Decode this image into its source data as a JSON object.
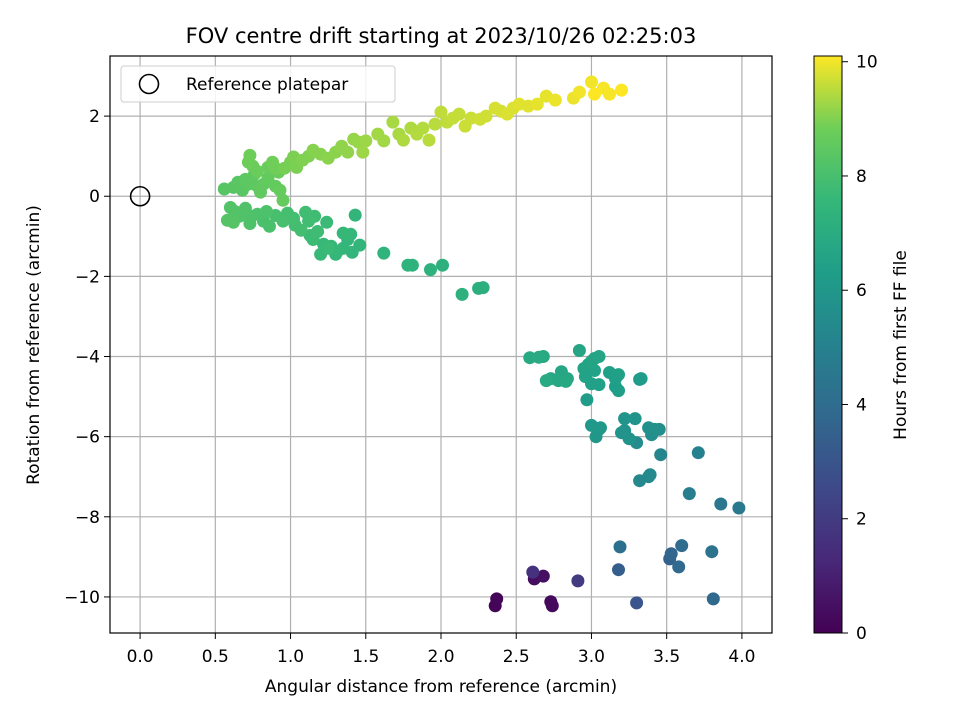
{
  "chart_data": {
    "type": "scatter",
    "title": "FOV centre drift starting at 2023/10/26 02:25:03",
    "xlabel": "Angular distance from reference (arcmin)",
    "ylabel": "Rotation from reference (arcmin)",
    "xlim": [
      -0.2,
      4.2
    ],
    "ylim": [
      -10.9,
      3.5
    ],
    "xticks": [
      0.0,
      0.5,
      1.0,
      1.5,
      2.0,
      2.5,
      3.0,
      3.5,
      4.0
    ],
    "xtick_labels": [
      "0.0",
      "0.5",
      "1.0",
      "1.5",
      "2.0",
      "2.5",
      "3.0",
      "3.5",
      "4.0"
    ],
    "yticks": [
      2,
      0,
      -2,
      -4,
      -6,
      -8,
      -10
    ],
    "ytick_labels": [
      "2",
      "0",
      "−2",
      "−4",
      "−6",
      "−8",
      "−10"
    ],
    "grid": true,
    "legend_position": "top-left",
    "reference": {
      "label": "Reference platepar",
      "x": 0.0,
      "y": 0.0
    },
    "colorbar": {
      "label": "Hours from first FF file",
      "range": [
        0,
        10.1
      ],
      "ticks": [
        0,
        2,
        4,
        6,
        8,
        10
      ],
      "tick_labels": [
        "0",
        "2",
        "4",
        "6",
        "8",
        "10"
      ],
      "colormap": "viridis"
    },
    "points": [
      [
        2.36,
        -10.22,
        0.1
      ],
      [
        2.37,
        -10.05,
        0.15
      ],
      [
        2.73,
        -10.12,
        0.25
      ],
      [
        2.74,
        -10.22,
        0.3
      ],
      [
        2.62,
        -9.55,
        0.4
      ],
      [
        2.68,
        -9.48,
        0.5
      ],
      [
        2.61,
        -9.38,
        1.6
      ],
      [
        2.91,
        -9.6,
        2.0
      ],
      [
        3.3,
        -10.15,
        3.0
      ],
      [
        3.18,
        -9.32,
        3.4
      ],
      [
        3.52,
        -9.05,
        3.6
      ],
      [
        3.53,
        -8.92,
        3.7
      ],
      [
        3.58,
        -9.25,
        3.9
      ],
      [
        3.6,
        -8.72,
        4.0
      ],
      [
        3.19,
        -8.75,
        4.2
      ],
      [
        3.8,
        -8.87,
        4.3
      ],
      [
        3.81,
        -10.05,
        3.8
      ],
      [
        3.86,
        -7.68,
        4.5
      ],
      [
        3.98,
        -7.78,
        4.6
      ],
      [
        3.65,
        -7.42,
        4.8
      ],
      [
        3.71,
        -6.4,
        5.0
      ],
      [
        3.46,
        -6.45,
        5.2
      ],
      [
        3.32,
        -7.1,
        5.3
      ],
      [
        3.38,
        -7.0,
        5.3
      ],
      [
        3.39,
        -6.95,
        5.4
      ],
      [
        3.3,
        -6.15,
        5.5
      ],
      [
        3.4,
        -5.95,
        5.6
      ],
      [
        3.45,
        -5.82,
        5.6
      ],
      [
        3.42,
        -5.82,
        5.7
      ],
      [
        3.38,
        -5.78,
        5.7
      ],
      [
        3.22,
        -5.85,
        5.8
      ],
      [
        3.25,
        -6.05,
        5.8
      ],
      [
        3.2,
        -5.9,
        5.85
      ],
      [
        3.22,
        -5.55,
        5.9
      ],
      [
        3.29,
        -5.55,
        5.9
      ],
      [
        3.05,
        -5.82,
        6.0
      ],
      [
        3.03,
        -6.0,
        6.0
      ],
      [
        3.0,
        -5.72,
        6.05
      ],
      [
        3.06,
        -5.78,
        6.1
      ],
      [
        2.97,
        -5.08,
        6.2
      ],
      [
        3.32,
        -4.57,
        6.2
      ],
      [
        3.33,
        -4.55,
        6.25
      ],
      [
        3.16,
        -4.75,
        6.3
      ],
      [
        3.18,
        -4.85,
        6.3
      ],
      [
        3.16,
        -4.55,
        6.35
      ],
      [
        3.18,
        -4.45,
        6.4
      ],
      [
        3.12,
        -4.4,
        6.4
      ],
      [
        3.0,
        -4.68,
        6.45
      ],
      [
        3.05,
        -4.7,
        6.45
      ],
      [
        3.02,
        -4.35,
        6.5
      ],
      [
        2.96,
        -4.5,
        6.5
      ],
      [
        2.95,
        -4.3,
        6.55
      ],
      [
        2.98,
        -4.2,
        6.55
      ],
      [
        3.0,
        -4.12,
        6.6
      ],
      [
        3.02,
        -4.05,
        6.6
      ],
      [
        3.05,
        -4.0,
        6.65
      ],
      [
        2.92,
        -3.85,
        6.65
      ],
      [
        2.84,
        -4.55,
        6.7
      ],
      [
        2.8,
        -4.38,
        6.7
      ],
      [
        2.78,
        -4.6,
        6.75
      ],
      [
        2.73,
        -4.55,
        6.75
      ],
      [
        2.83,
        -4.62,
        6.8
      ],
      [
        2.68,
        -4.0,
        6.85
      ],
      [
        2.59,
        -4.03,
        6.85
      ],
      [
        2.65,
        -4.02,
        6.9
      ],
      [
        2.7,
        -4.6,
        6.9
      ],
      [
        2.28,
        -2.28,
        7.1
      ],
      [
        2.25,
        -2.3,
        7.1
      ],
      [
        2.14,
        -2.45,
        7.15
      ],
      [
        2.01,
        -1.72,
        7.2
      ],
      [
        1.93,
        -1.83,
        7.25
      ],
      [
        1.81,
        -1.72,
        7.3
      ],
      [
        1.78,
        -1.72,
        7.3
      ],
      [
        1.62,
        -1.42,
        7.35
      ],
      [
        1.43,
        -0.47,
        7.4
      ],
      [
        1.46,
        -1.22,
        7.4
      ],
      [
        1.41,
        -1.4,
        7.45
      ],
      [
        1.38,
        -1.08,
        7.45
      ],
      [
        1.35,
        -1.3,
        7.5
      ],
      [
        1.3,
        -1.45,
        7.5
      ],
      [
        1.31,
        -1.38,
        7.55
      ],
      [
        1.4,
        -0.95,
        7.55
      ],
      [
        1.35,
        -0.92,
        7.6
      ],
      [
        1.27,
        -1.25,
        7.6
      ],
      [
        1.2,
        -1.45,
        7.65
      ],
      [
        1.22,
        -1.2,
        7.65
      ],
      [
        1.25,
        -1.3,
        7.7
      ],
      [
        1.24,
        -0.65,
        7.7
      ],
      [
        1.15,
        -1.08,
        7.75
      ],
      [
        1.13,
        -0.98,
        7.75
      ],
      [
        1.18,
        -0.88,
        7.8
      ],
      [
        1.16,
        -0.5,
        7.8
      ],
      [
        1.1,
        -0.4,
        7.85
      ],
      [
        1.12,
        -0.62,
        7.85
      ],
      [
        1.07,
        -0.85,
        7.9
      ],
      [
        1.03,
        -0.72,
        7.9
      ],
      [
        1.02,
        -0.55,
        7.95
      ],
      [
        0.98,
        -0.42,
        7.95
      ],
      [
        0.95,
        -0.62,
        8.0
      ],
      [
        0.9,
        -0.48,
        8.0
      ],
      [
        0.86,
        -0.75,
        8.05
      ],
      [
        0.82,
        -0.62,
        8.05
      ],
      [
        0.84,
        -0.38,
        8.1
      ],
      [
        0.78,
        -0.45,
        8.1
      ],
      [
        0.74,
        -0.5,
        8.15
      ],
      [
        0.73,
        -0.68,
        8.15
      ],
      [
        0.7,
        -0.3,
        8.2
      ],
      [
        0.66,
        -0.5,
        8.2
      ],
      [
        0.63,
        -0.38,
        8.25
      ],
      [
        0.6,
        -0.28,
        8.25
      ],
      [
        0.58,
        -0.6,
        8.3
      ],
      [
        0.62,
        -0.65,
        8.3
      ],
      [
        0.56,
        0.18,
        8.35
      ],
      [
        0.62,
        0.22,
        8.35
      ],
      [
        0.65,
        0.35,
        8.4
      ],
      [
        0.68,
        0.15,
        8.4
      ],
      [
        0.7,
        0.42,
        8.45
      ],
      [
        0.72,
        0.3,
        8.45
      ],
      [
        0.76,
        0.55,
        8.5
      ],
      [
        0.78,
        0.25,
        8.5
      ],
      [
        0.8,
        0.1,
        8.55
      ],
      [
        0.82,
        0.3,
        8.55
      ],
      [
        0.85,
        0.45,
        8.6
      ],
      [
        0.9,
        0.25,
        8.6
      ],
      [
        0.93,
        0.15,
        8.65
      ],
      [
        0.95,
        -0.1,
        8.65
      ],
      [
        0.92,
        0.6,
        8.7
      ],
      [
        0.85,
        0.72,
        8.7
      ],
      [
        0.78,
        0.62,
        8.75
      ],
      [
        0.75,
        0.75,
        8.75
      ],
      [
        0.73,
        1.02,
        8.8
      ],
      [
        0.72,
        0.85,
        8.8
      ],
      [
        0.88,
        0.85,
        8.85
      ],
      [
        0.9,
        0.7,
        8.85
      ],
      [
        0.96,
        0.7,
        8.9
      ],
      [
        1.0,
        0.85,
        8.9
      ],
      [
        1.04,
        0.72,
        8.95
      ],
      [
        1.02,
        0.98,
        8.95
      ],
      [
        1.08,
        0.9,
        9.0
      ],
      [
        1.12,
        1.0,
        9.0
      ],
      [
        1.15,
        1.15,
        9.05
      ],
      [
        1.2,
        1.05,
        9.05
      ],
      [
        1.25,
        0.95,
        9.1
      ],
      [
        1.3,
        1.1,
        9.1
      ],
      [
        1.34,
        1.25,
        9.15
      ],
      [
        1.38,
        1.1,
        9.15
      ],
      [
        1.42,
        1.42,
        9.2
      ],
      [
        1.45,
        1.35,
        9.2
      ],
      [
        1.48,
        1.1,
        9.25
      ],
      [
        1.5,
        1.38,
        9.25
      ],
      [
        1.58,
        1.55,
        9.3
      ],
      [
        1.62,
        1.38,
        9.3
      ],
      [
        1.68,
        1.85,
        9.35
      ],
      [
        1.72,
        1.55,
        9.35
      ],
      [
        1.75,
        1.4,
        9.4
      ],
      [
        1.8,
        1.7,
        9.4
      ],
      [
        1.84,
        1.55,
        9.45
      ],
      [
        1.88,
        1.7,
        9.45
      ],
      [
        1.92,
        1.4,
        9.5
      ],
      [
        1.96,
        1.8,
        9.5
      ],
      [
        2.0,
        2.1,
        9.55
      ],
      [
        2.04,
        1.85,
        9.55
      ],
      [
        2.08,
        1.95,
        9.6
      ],
      [
        2.12,
        2.05,
        9.6
      ],
      [
        2.16,
        1.75,
        9.65
      ],
      [
        2.2,
        1.95,
        9.65
      ],
      [
        2.26,
        1.92,
        9.7
      ],
      [
        2.3,
        2.0,
        9.7
      ],
      [
        2.36,
        2.2,
        9.75
      ],
      [
        2.4,
        2.12,
        9.75
      ],
      [
        2.44,
        2.05,
        9.8
      ],
      [
        2.48,
        2.2,
        9.8
      ],
      [
        2.52,
        2.3,
        9.85
      ],
      [
        2.58,
        2.25,
        9.85
      ],
      [
        2.64,
        2.3,
        9.9
      ],
      [
        2.7,
        2.5,
        9.9
      ],
      [
        2.76,
        2.4,
        9.95
      ],
      [
        2.88,
        2.45,
        9.95
      ],
      [
        2.92,
        2.6,
        10.0
      ],
      [
        3.0,
        2.85,
        10.0
      ],
      [
        3.08,
        2.7,
        10.05
      ],
      [
        3.12,
        2.55,
        10.05
      ],
      [
        3.2,
        2.65,
        10.1
      ],
      [
        3.02,
        2.55,
        10.1
      ]
    ]
  }
}
